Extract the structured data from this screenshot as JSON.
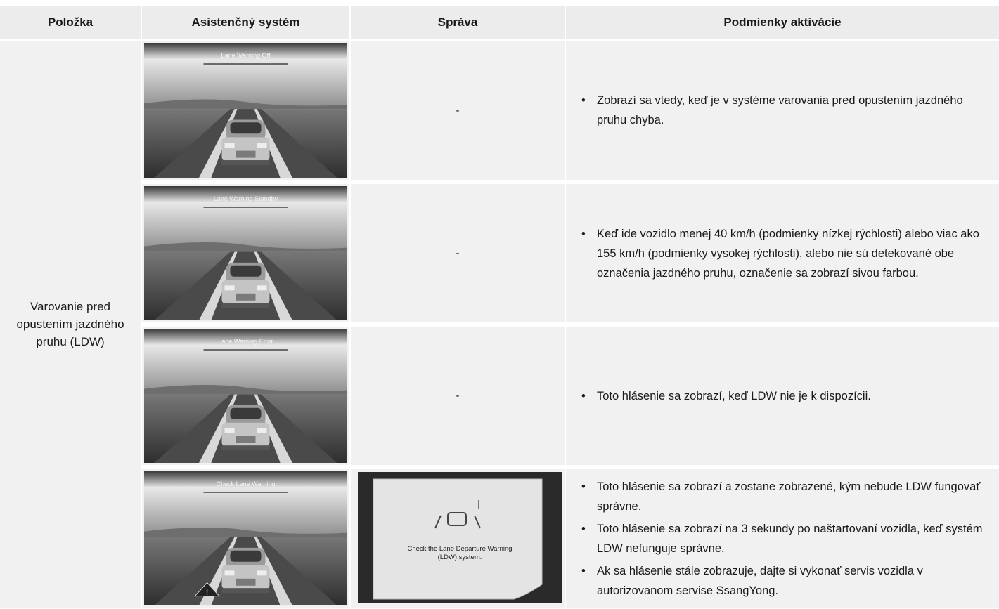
{
  "table": {
    "headers": [
      "Položka",
      "Asistenčný systém",
      "Správa",
      "Podmienky aktivácie"
    ],
    "item": "Varovanie pred opustením jazdného pruhu (LDW)",
    "rows": [
      {
        "screen_text": "Lane Warning Off",
        "message": "-",
        "conditions": [
          "Zobrazí sa vtedy, keď je v systéme varovania pred opustením jazdného pruhu chyba."
        ]
      },
      {
        "screen_text": "Lane Warning Standby",
        "message": "-",
        "conditions": [
          "Keď ide vozidlo menej 40 km/h (podmienky nízkej rýchlosti) alebo viac ako 155 km/h (podmienky vysokej rýchlosti), alebo nie sú detekované obe označenia jazdného pruhu, označenie sa zobrazí sivou farbou."
        ]
      },
      {
        "screen_text": "Lane Warning Error",
        "message": "-",
        "conditions": [
          "Toto hlásenie sa zobrazí, keď LDW nie je k dispozícii."
        ]
      },
      {
        "screen_text": "Check Lane Warning",
        "message": {
          "screen_text": "Check the Lane Departure Warning (LDW) system."
        },
        "conditions": [
          "Toto hlásenie sa zobrazí a zostane zobrazené, kým nebude LDW fungovať správne.",
          "Toto hlásenie sa zobrazí na 3 sekundy po naštartovaní vozidla, keď systém LDW nefunguje správne.",
          "Ak sa hlásenie stále zobrazuje, dajte si vykonať servis vozidla v autorizovanom servise SsangYong."
        ]
      }
    ]
  }
}
